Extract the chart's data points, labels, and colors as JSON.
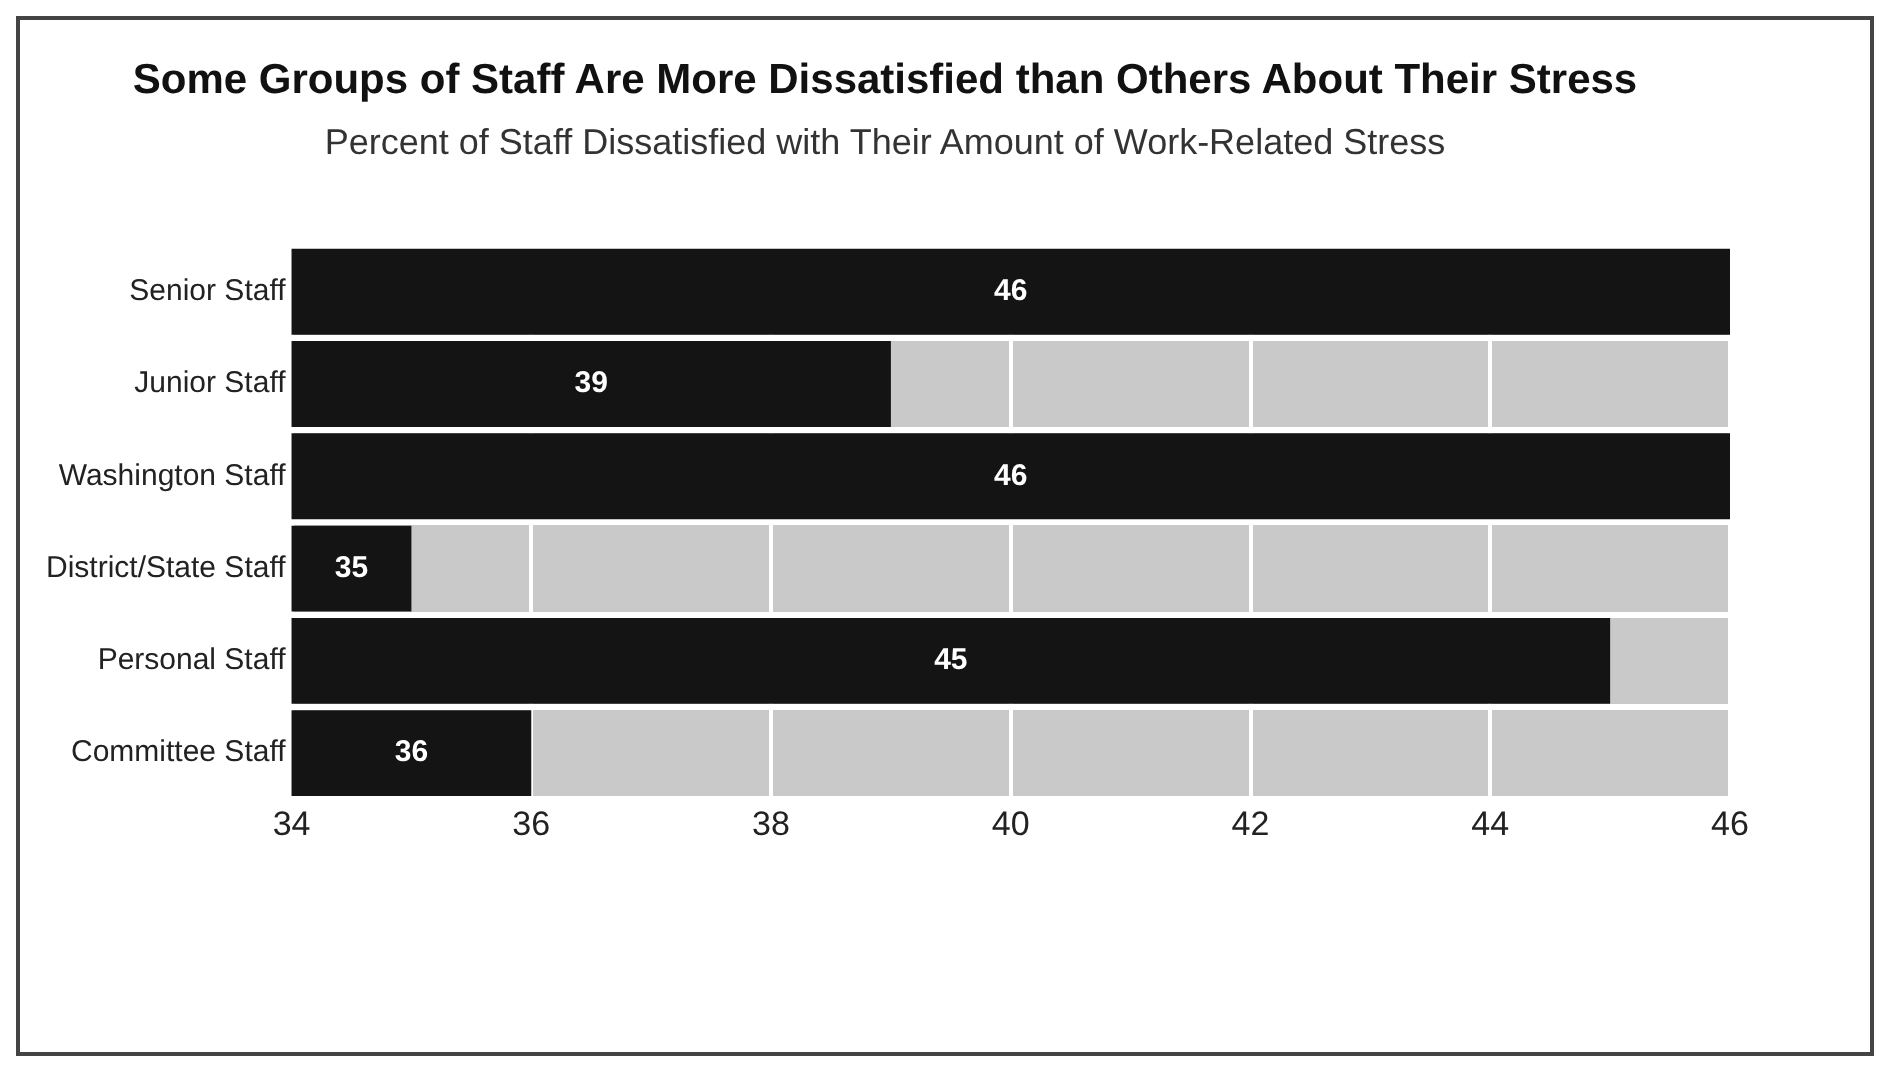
{
  "chart_data": {
    "type": "bar",
    "orientation": "horizontal",
    "title": "Some Groups of Staff Are More Dissatisfied than Others About Their Stress",
    "subtitle": "Percent of Staff Dissatisfied with Their Amount of Work-Related Stress",
    "categories": [
      "Senior Staff",
      "Junior Staff",
      "Washington Staff",
      "District/State Staff",
      "Personal Staff",
      "Committee Staff"
    ],
    "values": [
      46,
      39,
      46,
      35,
      45,
      36
    ],
    "color": "#141414",
    "xlim": [
      34,
      46
    ],
    "xticks": [
      34,
      36,
      38,
      40,
      42,
      44,
      46
    ],
    "grid": true,
    "data_labels": true,
    "legend": false
  }
}
